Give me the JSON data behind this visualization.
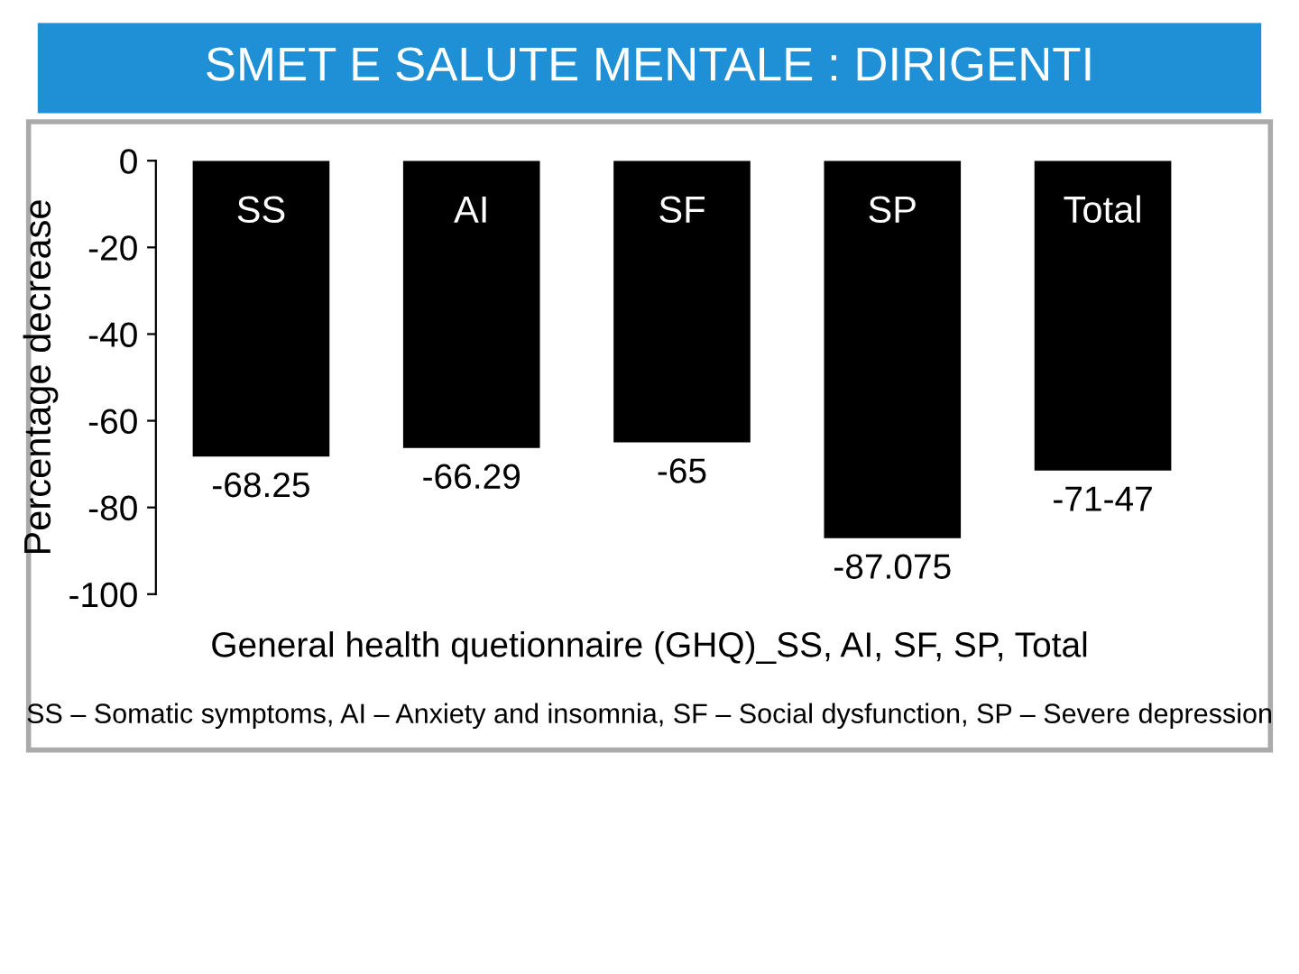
{
  "chart_data": {
    "type": "bar",
    "title": "SMET E SALUTE MENTALE : DIRIGENTI",
    "categories": [
      "SS",
      "AI",
      "SF",
      "SP",
      "Total"
    ],
    "values": [
      -68.25,
      -66.29,
      -65,
      -87.075,
      -71.47
    ],
    "value_labels": [
      "-68.25",
      "-66.29",
      "-65",
      "-87.075",
      "-71-47"
    ],
    "color": "#000000",
    "ylabel": "Percentage decrease",
    "xlabel": "General health quetionnaire (GHQ)_SS, AI, SF, SP, Total",
    "annotations": [
      "SS – Somatic symptoms, AI – Anxiety and insomnia, SF – Social dysfunction, SP – Severe depression"
    ],
    "ylim": [
      -100,
      0
    ],
    "yticks": [
      0,
      -20,
      -40,
      -60,
      -80,
      -100
    ]
  }
}
